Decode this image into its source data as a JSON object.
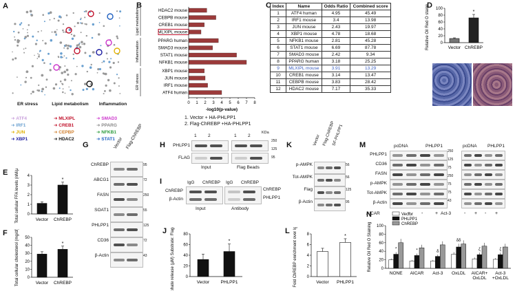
{
  "panels": {
    "A": {
      "label": "A",
      "groups": [
        {
          "title": "ER stress",
          "items": [
            {
              "name": "ATF4",
              "color": "#c9a0dc"
            },
            {
              "name": "IRF1",
              "color": "#6aa0d0"
            },
            {
              "name": "JUN",
              "color": "#e0b000"
            },
            {
              "name": "XBP1",
              "color": "#1a1aa0"
            }
          ]
        },
        {
          "title": "Lipid metabolism",
          "items": [
            {
              "name": "MLXIPL",
              "color": "#c0102a"
            },
            {
              "name": "CREB1",
              "color": "#c0102a"
            },
            {
              "name": "CEPBP",
              "color": "#d08030"
            },
            {
              "name": "HDAC2",
              "color": "#111111"
            }
          ]
        },
        {
          "title": "Inflammation",
          "items": [
            {
              "name": "SMAD3",
              "color": "#cc33cc"
            },
            {
              "name": "PPARG",
              "color": "#888888"
            },
            {
              "name": "NFKB1",
              "color": "#2a9a3a"
            },
            {
              "name": "STAT1",
              "color": "#1e5fc0"
            }
          ]
        }
      ]
    },
    "B": {
      "label": "B",
      "xlabel": "-log10(p-value)",
      "ticks": [
        "0",
        "1",
        "2",
        "3",
        "4",
        "5",
        "6",
        "7",
        "8"
      ],
      "groups": [
        "Lipid metabolism",
        "Inflammation",
        "ER stress"
      ]
    },
    "C": {
      "label": "C",
      "headers": [
        "Index",
        "Name",
        "Odds Ratio",
        "Combined score"
      ],
      "rows": [
        [
          "1",
          "ATF4 human",
          "4.95",
          "45.49"
        ],
        [
          "2",
          "IRF1 mouse",
          "3.4",
          "13.98"
        ],
        [
          "3",
          "JUN mouse",
          "2.43",
          "19.97"
        ],
        [
          "4",
          "XBP1 mouse",
          "4.78",
          "18.68"
        ],
        [
          "5",
          "NFKB1 mouse",
          "2.81",
          "45.28"
        ],
        [
          "6",
          "STAT1 mouse",
          "6.69",
          "87.78"
        ],
        [
          "7",
          "SMAD3 mouse",
          "2.42",
          "9.34"
        ],
        [
          "8",
          "PPARG human",
          "3.18",
          "25.25"
        ],
        [
          "9",
          "MLXIPL mouse",
          "3.91",
          "13.29"
        ],
        [
          "10",
          "CREB1 mouse",
          "3.14",
          "13.47"
        ],
        [
          "11",
          "CEBPB mouse",
          "3.83",
          "28.42"
        ],
        [
          "12",
          "HDAC2 mouse",
          "7.17",
          "35.33"
        ]
      ]
    },
    "D": {
      "label": "D",
      "ylabel": "Relative Oil Red O staining",
      "ticks": [
        "0",
        "20",
        "40",
        "60",
        "80",
        "100"
      ],
      "star": "*"
    },
    "E": {
      "label": "E",
      "ylabel": "Total cellular FFA levels (nM/µl)",
      "ticks": [
        "0",
        "1",
        "2",
        "3",
        "4"
      ],
      "star": "*"
    },
    "F": {
      "label": "F",
      "ylabel": "Total cellular cholesterol (mg/dl)",
      "ticks": [
        "0",
        "10",
        "20",
        "30",
        "40",
        "50"
      ],
      "star": "*"
    },
    "G": {
      "label": "G",
      "lanes": [
        "Vector",
        "Flag-ChREBP"
      ],
      "rows": [
        "ChREBP",
        "ABCG1",
        "FASN",
        "SOAT1",
        "PHLPP1",
        "CD36",
        "β-Actin"
      ],
      "kda": [
        "95",
        "72",
        "250",
        "55",
        "125",
        "72",
        "43"
      ]
    },
    "H": {
      "label": "H",
      "legend1": "1. Vector + HA-PHLPP1",
      "legend2": "2. Flag-ChREBP +HA-PHLPP1",
      "kda_header": "KDa",
      "rows": [
        "PHLPP1",
        "FLAG"
      ],
      "lanes": [
        "1",
        "2",
        "1",
        "2"
      ],
      "input": "Input",
      "beads": "Flag Beads",
      "kda": [
        "250",
        "125",
        "95"
      ]
    },
    "I": {
      "label": "I",
      "lanes": [
        "IgG",
        "ChREBP",
        "IgG",
        "ChREBP"
      ],
      "rows": [
        "ChREBP",
        "β-Actin"
      ],
      "right": [
        "ChREBP",
        "PHLPP1"
      ],
      "input": "Input",
      "antibody": "Antibody",
      "kda": [
        "95",
        "43",
        "250",
        "125"
      ]
    },
    "J": {
      "label": "J",
      "ylabel": "Phosphate release (µM) Substrate: Flag-ChREBP",
      "ticks": [
        "0",
        "20",
        "40",
        "60",
        "80"
      ],
      "star": "*"
    },
    "K": {
      "label": "K",
      "lanes": [
        "Vector",
        "Flag-ChREBP",
        "SF-PHLPP1"
      ],
      "rows": [
        "p-AMPK",
        "Tot-AMPK",
        "Flag",
        "β-Actin"
      ],
      "kda": [
        "56",
        "56",
        "125",
        "95",
        "43"
      ]
    },
    "L": {
      "label": "L",
      "ylabel": "Fold ChREBP enrichment over IgG",
      "ticks": [
        "0",
        "2",
        "4",
        "6",
        "8"
      ],
      "star": "*"
    },
    "M": {
      "label": "M",
      "groups": [
        "pcDNA",
        "PHLPP1",
        "pcDNA",
        "PHLPP1"
      ],
      "rows": [
        "PHLPP1",
        "CD36",
        "FASN",
        "p-AMPK",
        "Tot-AMPK",
        "β-Actin"
      ],
      "kda": [
        "250",
        "125",
        "75",
        "250",
        "75",
        "75",
        "43"
      ],
      "aicar": "AICAR",
      "act3": "Act-3",
      "signs": [
        "-",
        "+",
        "-",
        "+"
      ]
    },
    "N": {
      "label": "N",
      "ylabel": "Relative Oil Red O Staining",
      "ticks": [
        "0",
        "20",
        "40",
        "60",
        "80",
        "100"
      ],
      "legend": [
        {
          "name": "Vector",
          "color": "#ffffff"
        },
        {
          "name": "PHLPP1",
          "color": "#111111"
        },
        {
          "name": "ChREBP",
          "color": "#999999"
        }
      ],
      "categories": [
        "NONE",
        "AICAR",
        "Act-3",
        "OxLDL",
        "AICAR+ OxLDL",
        "Act-3 +OxLDL"
      ],
      "marks": [
        "*",
        "*",
        "δ",
        "δδ",
        "ζ",
        "ζ"
      ]
    }
  },
  "chart_data": [
    {
      "type": "bar",
      "panel": "B",
      "orientation": "horizontal",
      "xlabel": "-log10(p-value)",
      "xlim": [
        0,
        8
      ],
      "categories": [
        "HDAC2 mouse",
        "CEBPB mouse",
        "CREB1 mouse",
        "MLXIPL mouse",
        "PPARG human",
        "SMAD3 mouse",
        "STAT1 mouse",
        "NFKB1 mouse",
        "XBP1 mouse",
        "JUN mouse",
        "IRF1 mouse",
        "ATF4 human"
      ],
      "values": [
        2.2,
        3.3,
        1.9,
        1.5,
        3.6,
        2.9,
        5.8,
        7.0,
        1.9,
        2.0,
        2.3,
        4.0
      ],
      "color": "#9b3a3a"
    },
    {
      "type": "bar",
      "panel": "D",
      "ylabel": "Relative Oil Red O staining",
      "ylim": [
        0,
        100
      ],
      "categories": [
        "Vector",
        "ChREBP"
      ],
      "values": [
        12,
        72
      ],
      "errors": [
        2,
        10
      ]
    },
    {
      "type": "bar",
      "panel": "E",
      "ylabel": "Total cellular FFA levels (nM/µl)",
      "ylim": [
        0,
        4
      ],
      "categories": [
        "Vector",
        "ChREBP"
      ],
      "values": [
        1.1,
        3.0
      ],
      "errors": [
        0.15,
        0.3
      ]
    },
    {
      "type": "bar",
      "panel": "F",
      "ylabel": "Total cellular cholesterol (mg/dl)",
      "ylim": [
        0,
        50
      ],
      "categories": [
        "Vector",
        "ChREBP"
      ],
      "values": [
        29,
        35
      ],
      "errors": [
        3,
        4
      ]
    },
    {
      "type": "bar",
      "panel": "J",
      "ylabel": "Phosphate release (µM) Substrate: Flag-ChREBP",
      "ylim": [
        0,
        80
      ],
      "categories": [
        "Vector",
        "PHLPP1"
      ],
      "values": [
        32,
        47
      ],
      "errors": [
        10,
        14
      ]
    },
    {
      "type": "bar",
      "panel": "L",
      "ylabel": "Fold ChREBP enrichment over IgG",
      "ylim": [
        0,
        8
      ],
      "categories": [
        "Vector",
        "PHLPP1"
      ],
      "values": [
        4.7,
        6.4
      ],
      "errors": [
        0.6,
        0.7
      ]
    },
    {
      "type": "bar",
      "panel": "N",
      "ylabel": "Relative Oil Red O Staining",
      "ylim": [
        0,
        100
      ],
      "categories": [
        "NONE",
        "AICAR",
        "Act-3",
        "OxLDL",
        "AICAR+ OxLDL",
        "Act-3 +OxLDL"
      ],
      "series": [
        {
          "name": "Vector",
          "values": [
            20,
            17,
            17,
            33,
            22,
            21
          ]
        },
        {
          "name": "PHLPP1",
          "values": [
            33,
            30,
            28,
            50,
            32,
            32
          ]
        },
        {
          "name": "ChREBP",
          "values": [
            60,
            48,
            55,
            57,
            52,
            50
          ]
        }
      ]
    }
  ]
}
